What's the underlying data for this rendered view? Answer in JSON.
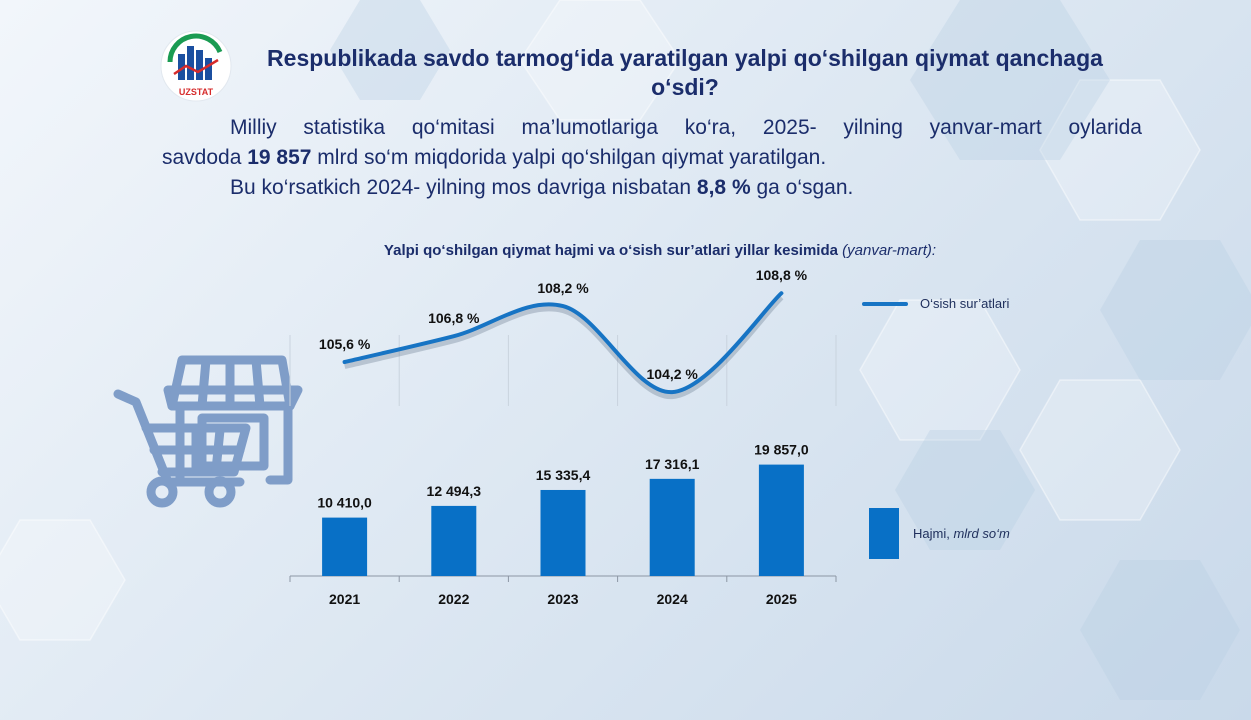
{
  "logo": {
    "text": "UZSTAT"
  },
  "title": "Respublikada savdo tarmog‘ida yaratilgan yalpi qo‘shilgan qiymat qanchaga o‘sdi?",
  "paragraph": {
    "line1": "Milliy statistika qo‘mitasi ma’lumotlariga ko‘ra, 2025- yilning yanvar-mart oylarida",
    "line2_a": "savdoda ",
    "line2_b": "19 857",
    "line2_c": " mlrd so‘m miqdorida yalpi qo‘shilgan qiymat yaratilgan.",
    "line3_a": "Bu ko‘rsatkich 2024- yilning mos davriga nisbatan ",
    "line3_b": "8,8 %",
    "line3_c": " ga o‘sgan."
  },
  "chart_title": {
    "main": "Yalpi qo‘shilgan qiymat hajmi va o‘sish sur’atlari yillar kesimida ",
    "italic": "(yanvar-mart):"
  },
  "legend": {
    "line_label": "O‘sish sur’atlari",
    "bar_label": "Hajmi, ",
    "bar_label_italic": "mlrd so‘m"
  },
  "colors": {
    "bar": "#0870c6",
    "line": "#1774c4",
    "text": "#1b2d6b"
  },
  "icons": [
    "shopping-cart-store-icon",
    "uzstat-logo"
  ],
  "chart_data": {
    "type": "bar+line",
    "categories": [
      "2021",
      "2022",
      "2023",
      "2024",
      "2025"
    ],
    "series": [
      {
        "name": "Hajmi, mlrd so‘m",
        "type": "bar",
        "values": [
          10410.0,
          12494.3,
          15335.4,
          17316.1,
          19857.0
        ],
        "labels": [
          "10 410,0",
          "12 494,3",
          "15 335,4",
          "17 316,1",
          "19 857,0"
        ]
      },
      {
        "name": "O‘sish sur’atlari",
        "type": "line",
        "values": [
          105.6,
          106.8,
          108.2,
          104.2,
          108.8
        ],
        "labels": [
          "105,6  %",
          "106,8  %",
          "108,2  %",
          "104,2  %",
          "108,8  %"
        ]
      }
    ]
  }
}
